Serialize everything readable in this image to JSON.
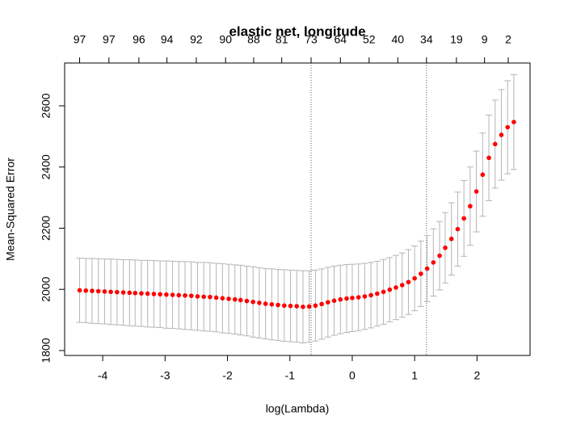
{
  "chart_data": {
    "type": "errorbar",
    "title": "elastic net, longitude",
    "xlabel": "log(Lambda)",
    "ylabel": "Mean-Squared Error",
    "x": [
      -4.37,
      -4.27,
      -4.17,
      -4.07,
      -3.97,
      -3.87,
      -3.77,
      -3.67,
      -3.57,
      -3.48,
      -3.38,
      -3.28,
      -3.18,
      -3.08,
      -2.98,
      -2.88,
      -2.78,
      -2.68,
      -2.58,
      -2.48,
      -2.38,
      -2.28,
      -2.18,
      -2.08,
      -1.98,
      -1.88,
      -1.79,
      -1.69,
      -1.59,
      -1.49,
      -1.39,
      -1.29,
      -1.19,
      -1.09,
      -0.99,
      -0.89,
      -0.79,
      -0.69,
      -0.59,
      -0.49,
      -0.39,
      -0.29,
      -0.19,
      -0.09,
      0,
      0.1,
      0.2,
      0.3,
      0.4,
      0.5,
      0.6,
      0.7,
      0.8,
      0.9,
      1,
      1.1,
      1.2,
      1.3,
      1.4,
      1.49,
      1.59,
      1.69,
      1.79,
      1.89,
      1.99,
      2.09,
      2.19,
      2.29,
      2.39,
      2.49,
      2.59
    ],
    "values": [
      1997,
      1996,
      1995,
      1994,
      1993,
      1992,
      1991,
      1990,
      1989,
      1988,
      1987,
      1986,
      1985,
      1984,
      1983,
      1982,
      1981,
      1980,
      1979,
      1977,
      1976,
      1975,
      1973,
      1971,
      1969,
      1967,
      1965,
      1962,
      1959,
      1956,
      1953,
      1951,
      1949,
      1947,
      1946,
      1945,
      1943,
      1944,
      1947,
      1952,
      1958,
      1963,
      1967,
      1970,
      1972,
      1974,
      1977,
      1981,
      1986,
      1992,
      1999,
      2006,
      2014,
      2024,
      2036,
      2051,
      2068,
      2088,
      2110,
      2136,
      2165,
      2197,
      2232,
      2272,
      2320,
      2375,
      2430,
      2475,
      2505,
      2530,
      2547
    ],
    "errors": [
      105,
      105,
      106,
      106,
      106,
      107,
      107,
      107,
      108,
      108,
      108,
      109,
      109,
      109,
      110,
      110,
      110,
      111,
      111,
      111,
      112,
      112,
      112,
      113,
      113,
      113,
      114,
      114,
      115,
      115,
      115,
      116,
      116,
      117,
      117,
      117,
      118,
      117,
      116,
      115,
      114,
      113,
      112,
      111,
      110,
      109,
      108,
      107,
      106,
      106,
      105,
      105,
      105,
      106,
      106,
      107,
      108,
      110,
      112,
      115,
      118,
      121,
      124,
      128,
      132,
      136,
      140,
      144,
      148,
      152,
      155
    ],
    "color": "#ff0000",
    "error_color": "#b4b4b4",
    "vlines": [
      -0.66,
      1.19
    ],
    "xlim": [
      -4.61,
      2.85
    ],
    "ylim": [
      1784,
      2740
    ],
    "xticks": [
      -4,
      -3,
      -2,
      -1,
      0,
      1,
      2
    ],
    "yticks": [
      1800,
      2000,
      2200,
      2400,
      2600
    ],
    "top_ticks": [
      {
        "value": -4.37,
        "label": "97"
      },
      {
        "value": -3.9,
        "label": "97"
      },
      {
        "value": -3.42,
        "label": "96"
      },
      {
        "value": -2.97,
        "label": "94"
      },
      {
        "value": -2.5,
        "label": "92"
      },
      {
        "value": -2.03,
        "label": "90"
      },
      {
        "value": -1.58,
        "label": "88"
      },
      {
        "value": -1.13,
        "label": "81"
      },
      {
        "value": -0.66,
        "label": "73"
      },
      {
        "value": -0.19,
        "label": "64"
      },
      {
        "value": 0.27,
        "label": "52"
      },
      {
        "value": 0.73,
        "label": "40"
      },
      {
        "value": 1.19,
        "label": "34"
      },
      {
        "value": 1.67,
        "label": "19"
      },
      {
        "value": 2.12,
        "label": "9"
      },
      {
        "value": 2.5,
        "label": "2"
      }
    ]
  }
}
